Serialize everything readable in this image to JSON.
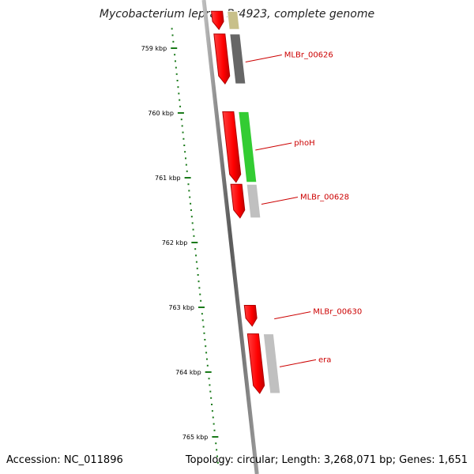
{
  "title": "Mycobacterium leprae Br4923, complete genome",
  "footer": {
    "accession": "Accession: NC_011896",
    "summary": "Topology: circular; Length: 3,268,071 bp; Genes: 1,651"
  },
  "colors": {
    "cds": "#ff0000",
    "gene_dark": "#666666",
    "gene_light": "#c0c0c0",
    "gene_green": "#33cc33",
    "gene_olive": "#c8c08a",
    "tick": "#1a7a1a",
    "label": "#cc0000",
    "backbone": "#8a8a8a"
  },
  "ruler": {
    "ticks": [
      {
        "kbp": 759,
        "label": "759 kbp"
      },
      {
        "kbp": 760,
        "label": "760 kbp"
      },
      {
        "kbp": 761,
        "label": "761 kbp"
      },
      {
        "kbp": 762,
        "label": "762 kbp"
      },
      {
        "kbp": 763,
        "label": "763 kbp"
      },
      {
        "kbp": 764,
        "label": "764 kbp"
      },
      {
        "kbp": 765,
        "label": "765 kbp"
      }
    ]
  },
  "genes": [
    {
      "name": "",
      "start": 758.43,
      "end": 758.71,
      "cds": true,
      "gene_color": "olive"
    },
    {
      "name": "MLBr_00626",
      "start": 758.78,
      "end": 759.55,
      "cds": true,
      "gene_color": "dark"
    },
    {
      "name": "phoH",
      "start": 759.98,
      "end": 761.07,
      "cds": true,
      "gene_color": "green"
    },
    {
      "name": "MLBr_00628",
      "start": 761.1,
      "end": 761.62,
      "cds": true,
      "gene_color": "light"
    },
    {
      "name": "MLBr_00630",
      "start": 762.97,
      "end": 763.29,
      "cds": true,
      "gene_color": "none"
    },
    {
      "name": "era",
      "start": 763.41,
      "end": 764.33,
      "cds": true,
      "gene_color": "light"
    }
  ]
}
